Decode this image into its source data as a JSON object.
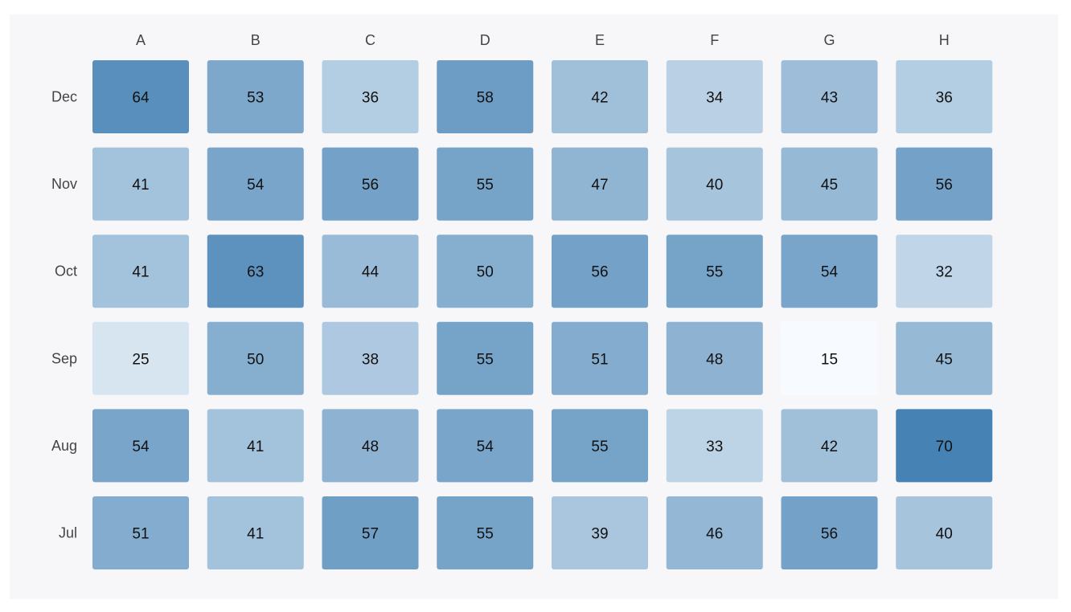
{
  "chart_data": {
    "type": "heatmap",
    "title": "",
    "xlabel": "",
    "ylabel": "",
    "columns": [
      "A",
      "B",
      "C",
      "D",
      "E",
      "F",
      "G",
      "H"
    ],
    "rows": [
      "Dec",
      "Nov",
      "Oct",
      "Sep",
      "Aug",
      "Jul"
    ],
    "values": [
      [
        64,
        53,
        36,
        58,
        42,
        34,
        43,
        36
      ],
      [
        41,
        54,
        56,
        55,
        47,
        40,
        45,
        56
      ],
      [
        41,
        63,
        44,
        50,
        56,
        55,
        54,
        32
      ],
      [
        25,
        50,
        38,
        55,
        51,
        48,
        15,
        45
      ],
      [
        54,
        41,
        48,
        54,
        55,
        33,
        42,
        70
      ],
      [
        51,
        41,
        57,
        55,
        39,
        46,
        56,
        40
      ]
    ],
    "color_scale": {
      "low": "#f7fbff",
      "high": "#4682b4",
      "min": 15,
      "max": 70
    },
    "grid": false,
    "legend": "none"
  }
}
